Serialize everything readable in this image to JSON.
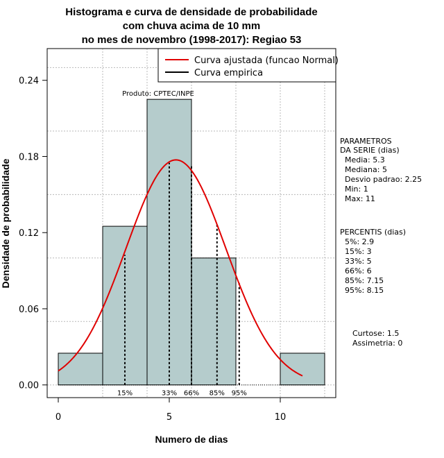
{
  "chart_data": {
    "type": "bar",
    "title_lines": [
      "Histograma e curva de densidade de probabilidade",
      "com chuva acima de 10 mm",
      "no mes de novembro (1998-2017): Regiao 53"
    ],
    "xlabel": "Numero de dias",
    "ylabel": "Densidade de probabilidade",
    "xlim": [
      -0.5,
      12.5
    ],
    "ylim": [
      -0.01,
      0.265
    ],
    "x_ticks": [
      0,
      5,
      10
    ],
    "y_ticks": [
      0.0,
      0.06,
      0.12,
      0.18,
      0.24
    ],
    "y_tick_labels": [
      "0.00",
      "0.06",
      "0.12",
      "0.18",
      "0.24"
    ],
    "grid_y": [
      0.0,
      0.05,
      0.1,
      0.15,
      0.2,
      0.25
    ],
    "grid_x": [
      2,
      4,
      6,
      8,
      10,
      12
    ],
    "bins": [
      {
        "from": 0,
        "to": 2,
        "density": 0.025
      },
      {
        "from": 2,
        "to": 4,
        "density": 0.125
      },
      {
        "from": 4,
        "to": 6,
        "density": 0.225
      },
      {
        "from": 6,
        "to": 8,
        "density": 0.1
      },
      {
        "from": 8,
        "to": 10,
        "density": 0.0
      },
      {
        "from": 10,
        "to": 12,
        "density": 0.025
      }
    ],
    "bar_color": "#b5cccc",
    "series": [
      {
        "name": "Curva ajustada (funcao Normal)",
        "type": "normal",
        "mean": 5.3,
        "sd": 2.25,
        "x_range": [
          0,
          11
        ],
        "color": "#e00000"
      },
      {
        "name": "Curva empirica",
        "color": "#000000"
      }
    ],
    "percentile_lines": [
      {
        "label": "15%",
        "x": 3,
        "y": 0.1025
      },
      {
        "label": "33%",
        "x": 5,
        "y": 0.175
      },
      {
        "label": "66%",
        "x": 6,
        "y": 0.173
      },
      {
        "label": "85%",
        "x": 7.15,
        "y": 0.127
      },
      {
        "label": "95%",
        "x": 8.15,
        "y": 0.082
      }
    ],
    "annotation": "Produto: CPTEC/INPE",
    "legend_position": "top-right"
  },
  "side_panel": {
    "parametros": [
      "PARAMETROS",
      "DA SERIE (dias)",
      "  Media: 5.3",
      "  Mediana: 5",
      "  Desvio padrao: 2.25",
      "  Min: 1",
      "  Max: 11"
    ],
    "percentis": [
      "PERCENTIS (dias)",
      "  5%: 2.9",
      "  15%: 3",
      "  33%: 5",
      "  66%: 6",
      "  85%: 7.15",
      "  95%: 8.15"
    ],
    "curtose": "Curtose: 1.5",
    "assimetria": "Assimetria: 0"
  }
}
